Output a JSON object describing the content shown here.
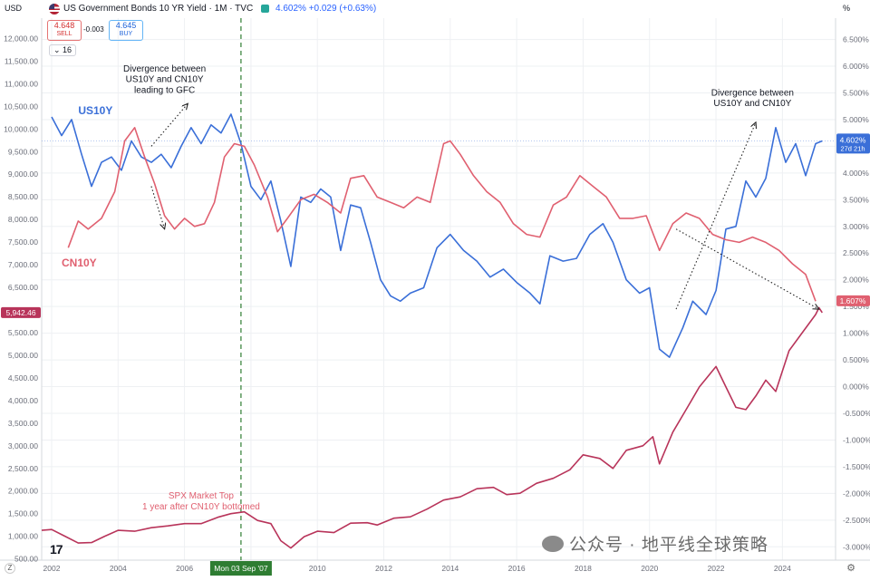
{
  "header": {
    "unit_left": "USD",
    "unit_right": "%",
    "title": "US Government Bonds 10 YR Yield · 1M · TVC",
    "quote": "4.602% +0.029 (+0.63%)",
    "sell_price": "4.648",
    "sell_label": "SELL",
    "spread": "-0.003",
    "buy_price": "4.645",
    "buy_label": "BUY",
    "indicator_count": "16"
  },
  "colors": {
    "us10y": "#3a6fd8",
    "cn10y": "#e06070",
    "spx": "#b8345a",
    "grid": "#eef0f3",
    "marker": "#2e7d32"
  },
  "icons": [
    "us-flag-icon",
    "live-status-icon",
    "tradingview-logo-icon",
    "wechat-icon",
    "settings-gear-icon"
  ],
  "watermark": "公众号 · 地平线全球策略",
  "tv_logo": "17",
  "chart_data": {
    "type": "line",
    "xlim": [
      2001.7,
      2025.6
    ],
    "x_ticks": [
      2002,
      2004,
      2006,
      2008,
      2010,
      2012,
      2014,
      2016,
      2018,
      2020,
      2022,
      2024
    ],
    "x_tick_labels": [
      "2002",
      "2004",
      "2006",
      "",
      "2010",
      "2012",
      "2014",
      "2016",
      "2018",
      "2020",
      "2022",
      "2024"
    ],
    "crosshair": {
      "x": 2007.7,
      "label": "Mon 03 Sep '07"
    },
    "left_axis": {
      "title": "USD",
      "range": [
        472,
        12450
      ],
      "ticks": [
        500,
        1000,
        1500,
        2000,
        2500,
        3000,
        3500,
        4000,
        4500,
        5000,
        5500,
        6000,
        6500,
        7000,
        7500,
        8000,
        8500,
        9000,
        9500,
        10000,
        10500,
        11000,
        11500,
        12000
      ],
      "tick_labels": [
        "500.00",
        "1,000.00",
        "1,500.00",
        "2,000.00",
        "2,500.00",
        "3,000.00",
        "3,500.00",
        "4,000.00",
        "4,500.00",
        "5,000.00",
        "5,500.00",
        "6,000.00",
        "6,500.00",
        "7,000.00",
        "7,500.00",
        "8,000.00",
        "8,500.00",
        "9,000.00",
        "9,500.00",
        "10,000.00",
        "10,500.00",
        "11,000.00",
        "11,500.00",
        "12,000.00"
      ],
      "last_value_label": "5,942.46",
      "last_value": 5942.46
    },
    "right_axis": {
      "title": "%",
      "range": [
        -3.25,
        6.9
      ],
      "ticks": [
        -3.0,
        -2.5,
        -2.0,
        -1.5,
        -1.0,
        -0.5,
        0.0,
        0.5,
        1.0,
        1.5,
        2.0,
        2.5,
        3.0,
        3.5,
        4.0,
        4.5,
        5.0,
        5.5,
        6.0,
        6.5
      ],
      "tick_labels": [
        "-3.000%",
        "-2.500%",
        "-2.000%",
        "-1.500%",
        "-1.000%",
        "-0.500%",
        "0.000%",
        "0.500%",
        "1.000%",
        "1.500%",
        "2.000%",
        "2.500%",
        "3.000%",
        "3.500%",
        "4.000%",
        "4.500%",
        "5.000%",
        "5.500%",
        "6.000%",
        "6.500%"
      ],
      "us10y_label": "4.602%",
      "us10y_sublabel": "27d 21h",
      "us10y_last": 4.602,
      "cn10y_label": "1.607%",
      "cn10y_last": 1.607
    },
    "series": [
      {
        "name": "US10Y",
        "axis": "right",
        "x": [
          2002.0,
          2002.3,
          2002.6,
          2002.9,
          2003.2,
          2003.5,
          2003.8,
          2004.1,
          2004.4,
          2004.7,
          2005.0,
          2005.3,
          2005.6,
          2005.9,
          2006.2,
          2006.5,
          2006.8,
          2007.1,
          2007.4,
          2007.7,
          2008.0,
          2008.3,
          2008.6,
          2008.9,
          2009.2,
          2009.5,
          2009.8,
          2010.1,
          2010.4,
          2010.7,
          2011.0,
          2011.3,
          2011.6,
          2011.9,
          2012.2,
          2012.5,
          2012.8,
          2013.2,
          2013.6,
          2014.0,
          2014.4,
          2014.8,
          2015.2,
          2015.6,
          2016.0,
          2016.4,
          2016.7,
          2017.0,
          2017.4,
          2017.8,
          2018.2,
          2018.6,
          2018.9,
          2019.3,
          2019.7,
          2020.0,
          2020.3,
          2020.6,
          2021.0,
          2021.3,
          2021.7,
          2022.0,
          2022.3,
          2022.6,
          2022.9,
          2023.2,
          2023.5,
          2023.8,
          2024.1,
          2024.4,
          2024.7,
          2025.0,
          2025.2
        ],
        "values": [
          5.05,
          4.7,
          5.0,
          4.35,
          3.75,
          4.2,
          4.3,
          4.05,
          4.6,
          4.3,
          4.2,
          4.35,
          4.1,
          4.5,
          4.85,
          4.55,
          4.9,
          4.75,
          5.1,
          4.55,
          3.75,
          3.5,
          3.85,
          3.1,
          2.25,
          3.55,
          3.45,
          3.7,
          3.55,
          2.55,
          3.4,
          3.35,
          2.7,
          2.0,
          1.7,
          1.6,
          1.75,
          1.85,
          2.6,
          2.85,
          2.55,
          2.35,
          2.05,
          2.2,
          1.95,
          1.75,
          1.55,
          2.45,
          2.35,
          2.4,
          2.85,
          3.05,
          2.7,
          2.0,
          1.75,
          1.85,
          0.7,
          0.55,
          1.1,
          1.6,
          1.35,
          1.8,
          2.95,
          3.0,
          3.85,
          3.55,
          3.9,
          4.85,
          4.2,
          4.55,
          3.95,
          4.55,
          4.6
        ]
      },
      {
        "name": "CN10Y",
        "axis": "right",
        "x": [
          2002.5,
          2002.8,
          2003.1,
          2003.5,
          2003.9,
          2004.2,
          2004.5,
          2004.8,
          2005.1,
          2005.4,
          2005.7,
          2006.0,
          2006.3,
          2006.6,
          2006.9,
          2007.2,
          2007.5,
          2007.8,
          2008.1,
          2008.5,
          2008.8,
          2009.1,
          2009.5,
          2009.9,
          2010.3,
          2010.7,
          2011.0,
          2011.4,
          2011.8,
          2012.2,
          2012.6,
          2013.0,
          2013.4,
          2013.8,
          2014.0,
          2014.3,
          2014.7,
          2015.1,
          2015.5,
          2015.9,
          2016.3,
          2016.7,
          2017.1,
          2017.5,
          2017.9,
          2018.3,
          2018.7,
          2019.1,
          2019.5,
          2019.9,
          2020.3,
          2020.7,
          2021.1,
          2021.5,
          2021.9,
          2022.3,
          2022.7,
          2023.1,
          2023.5,
          2023.9,
          2024.3,
          2024.7,
          2025.0
        ],
        "values": [
          2.6,
          3.1,
          2.95,
          3.15,
          3.65,
          4.6,
          4.85,
          4.3,
          3.8,
          3.2,
          2.95,
          3.15,
          3.0,
          3.05,
          3.45,
          4.3,
          4.55,
          4.5,
          4.15,
          3.55,
          2.9,
          3.15,
          3.5,
          3.6,
          3.45,
          3.25,
          3.9,
          3.95,
          3.55,
          3.45,
          3.35,
          3.55,
          3.45,
          4.55,
          4.6,
          4.35,
          3.95,
          3.65,
          3.45,
          3.05,
          2.85,
          2.8,
          3.4,
          3.55,
          3.95,
          3.75,
          3.55,
          3.15,
          3.15,
          3.2,
          2.55,
          3.05,
          3.25,
          3.15,
          2.85,
          2.75,
          2.7,
          2.8,
          2.7,
          2.55,
          2.3,
          2.1,
          1.6
        ]
      },
      {
        "name": "SPX",
        "axis": "left",
        "x": [
          2001.7,
          2002.0,
          2002.4,
          2002.8,
          2003.2,
          2003.6,
          2004.0,
          2004.5,
          2005.0,
          2005.5,
          2006.0,
          2006.5,
          2007.0,
          2007.4,
          2007.8,
          2008.2,
          2008.6,
          2008.9,
          2009.2,
          2009.6,
          2010.0,
          2010.5,
          2011.0,
          2011.5,
          2011.8,
          2012.3,
          2012.8,
          2013.3,
          2013.8,
          2014.3,
          2014.8,
          2015.3,
          2015.7,
          2016.1,
          2016.6,
          2017.1,
          2017.6,
          2018.0,
          2018.5,
          2018.9,
          2019.3,
          2019.8,
          2020.1,
          2020.3,
          2020.7,
          2021.1,
          2021.5,
          2022.0,
          2022.3,
          2022.6,
          2022.9,
          2023.2,
          2023.5,
          2023.8,
          2024.2,
          2024.6,
          2025.0,
          2025.1,
          2025.2
        ],
        "values": [
          1130,
          1150,
          1000,
          850,
          860,
          1000,
          1130,
          1110,
          1190,
          1230,
          1280,
          1280,
          1420,
          1500,
          1540,
          1350,
          1280,
          900,
          740,
          990,
          1110,
          1080,
          1290,
          1300,
          1250,
          1400,
          1430,
          1600,
          1800,
          1870,
          2050,
          2080,
          1920,
          1950,
          2170,
          2280,
          2470,
          2800,
          2720,
          2500,
          2900,
          3000,
          3200,
          2600,
          3300,
          3800,
          4300,
          4750,
          4300,
          3850,
          3800,
          4100,
          4450,
          4200,
          5100,
          5500,
          5900,
          6050,
          5942
        ]
      }
    ],
    "annotations": [
      {
        "text": "Divergence between",
        "x": 2005.4,
        "y": 5.9,
        "color": "#131722"
      },
      {
        "text": "US10Y and CN10Y",
        "x": 2005.4,
        "y": 5.7,
        "color": "#131722"
      },
      {
        "text": "leading to GFC",
        "x": 2005.4,
        "y": 5.5,
        "color": "#131722"
      },
      {
        "text": "Divergence between",
        "x": 2023.1,
        "y": 5.45,
        "color": "#131722"
      },
      {
        "text": "US10Y and CN10Y",
        "x": 2023.1,
        "y": 5.25,
        "color": "#131722"
      },
      {
        "text": "US10Y",
        "x": 2002.8,
        "y": 5.1,
        "color": "#3a6fd8"
      },
      {
        "text": "CN10Y",
        "x": 2002.3,
        "y": 2.25,
        "color": "#e06070"
      },
      {
        "text": "SPX Market Top",
        "x": 2006.5,
        "y": -2.1,
        "color": "#e06070"
      },
      {
        "text": "1 year after CN10Y bottomed",
        "x": 2006.5,
        "y": -2.3,
        "color": "#e06070"
      }
    ],
    "arrows": [
      {
        "from": [
          2005.0,
          4.5
        ],
        "to": [
          2006.1,
          5.3
        ]
      },
      {
        "from": [
          2005.0,
          3.75
        ],
        "to": [
          2005.4,
          2.95
        ]
      },
      {
        "from": [
          2020.8,
          1.45
        ],
        "to": [
          2023.2,
          4.95
        ]
      },
      {
        "from": [
          2020.8,
          2.95
        ],
        "to": [
          2025.1,
          1.45
        ]
      }
    ],
    "grid": true,
    "reference_line": {
      "y": 4.602,
      "axis": "right"
    }
  }
}
